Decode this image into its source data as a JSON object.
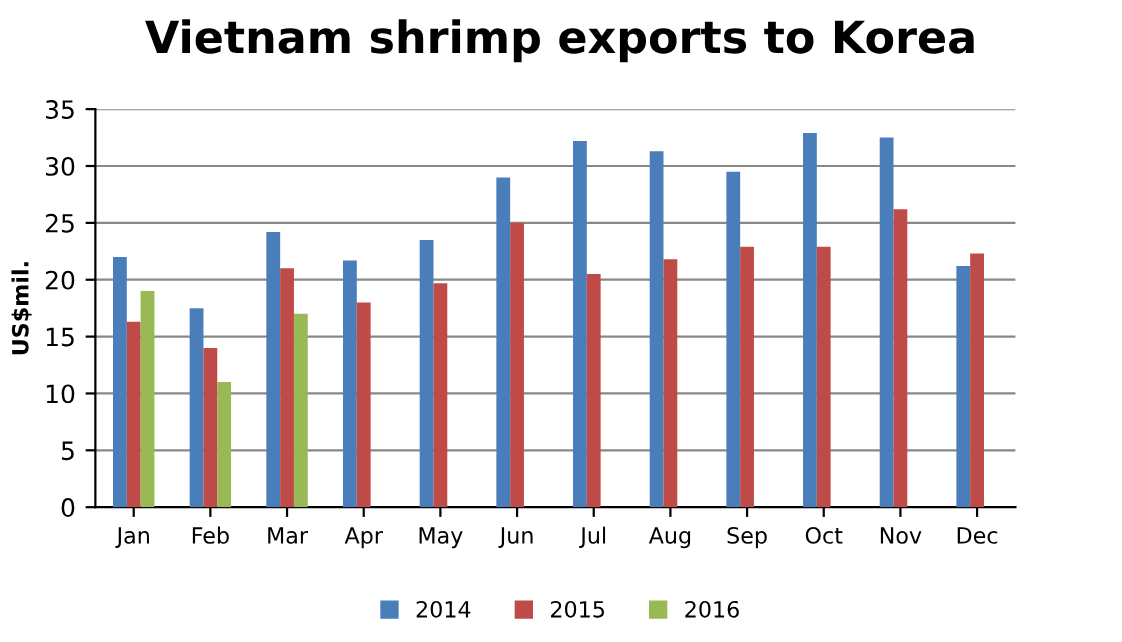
{
  "chart_data": {
    "type": "bar",
    "title": "Vietnam shrimp exports to Korea",
    "ylabel": "US$mil.",
    "categories": [
      "Jan",
      "Feb",
      "Mar",
      "Apr",
      "May",
      "Jun",
      "Jul",
      "Aug",
      "Sep",
      "Oct",
      "Nov",
      "Dec"
    ],
    "series": [
      {
        "name": "2014",
        "color": "#4a7ebb",
        "values": [
          22,
          17.5,
          24.2,
          21.7,
          23.5,
          29,
          32.2,
          31.3,
          29.5,
          32.9,
          32.5,
          21.2
        ]
      },
      {
        "name": "2015",
        "color": "#be4b48",
        "values": [
          16.3,
          14,
          21,
          18,
          19.7,
          25,
          20.5,
          21.8,
          22.9,
          22.9,
          26.2,
          22.3
        ]
      },
      {
        "name": "2016",
        "color": "#98b954",
        "values": [
          19,
          11,
          17,
          null,
          null,
          null,
          null,
          null,
          null,
          null,
          null,
          null
        ]
      }
    ],
    "ylim": [
      0,
      35
    ],
    "yticks": [
      0,
      5,
      10,
      15,
      20,
      25,
      30,
      35
    ],
    "grid": "y",
    "legend": "bottom"
  }
}
